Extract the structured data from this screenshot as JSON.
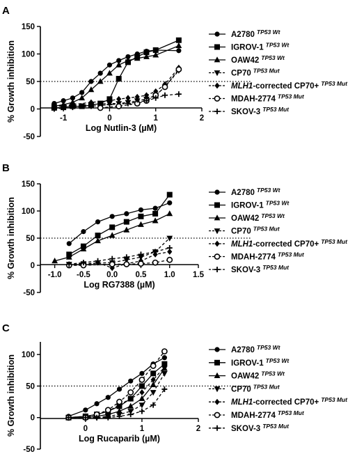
{
  "figure": {
    "markers": [
      "circle",
      "square",
      "triangle",
      "triangle-down",
      "diamond",
      "circle-open",
      "plus"
    ],
    "dashed": [
      false,
      false,
      false,
      true,
      true,
      true,
      true
    ],
    "legend_names": [
      {
        "name": "A2780",
        "sup": "TP53 Wt"
      },
      {
        "name": "IGROV-1",
        "sup": "TP53 Wt"
      },
      {
        "name": "OAW42",
        "sup": "TP53 Wt"
      },
      {
        "name": "CP70",
        "sup": "TP53 Mut"
      },
      {
        "name": "MLH1",
        "name_rest": "-corrected CP70+",
        "sup": "TP53 Mut",
        "italic_prefix": true
      },
      {
        "name": "MDAH-2774",
        "sup": "TP53 Mut"
      },
      {
        "name": "SKOV-3",
        "sup": "TP53 Mut"
      }
    ]
  },
  "chart_data": [
    {
      "type": "line",
      "panel_label": "A",
      "xlabel": "Log Nutlin-3 (µM)",
      "ylabel": "% Growth inhibition",
      "xlim": [
        -1.5,
        2
      ],
      "ylim": [
        -50,
        150
      ],
      "xticks": [
        "-1",
        "0",
        "1",
        "2"
      ],
      "xtick_values": [
        -1,
        0,
        1,
        2
      ],
      "yticks": [
        "-50",
        "0",
        "50",
        "100",
        "150"
      ],
      "ytick_values": [
        -50,
        0,
        50,
        100,
        150
      ],
      "reference_line_y": 50,
      "grid": false,
      "legend": "right",
      "series": [
        {
          "name": "A2780 TP53 Wt",
          "x": [
            -1.2,
            -1.0,
            -0.8,
            -0.6,
            -0.4,
            -0.2,
            0.0,
            0.2,
            0.4,
            0.6,
            0.8,
            1.0,
            1.5
          ],
          "y": [
            10,
            15,
            20,
            30,
            50,
            65,
            80,
            88,
            95,
            100,
            105,
            107,
            106
          ]
        },
        {
          "name": "IGROV-1 TP53 Wt",
          "x": [
            -1.2,
            -1.0,
            -0.8,
            -0.6,
            -0.4,
            -0.2,
            0.0,
            0.2,
            0.4,
            0.6,
            0.8,
            1.0,
            1.5
          ],
          "y": [
            2,
            3,
            5,
            5,
            7,
            10,
            18,
            55,
            85,
            95,
            103,
            107,
            125
          ]
        },
        {
          "name": "OAW42 TP53 Wt",
          "x": [
            -1.2,
            -1.0,
            -0.8,
            -0.6,
            -0.4,
            -0.2,
            0.0,
            0.2,
            0.4,
            0.6,
            0.8,
            1.0,
            1.5
          ],
          "y": [
            5,
            8,
            12,
            20,
            35,
            50,
            65,
            80,
            88,
            92,
            95,
            98,
            115
          ]
        },
        {
          "name": "CP70 TP53 Mut",
          "x": [
            -1.2,
            -0.8,
            -0.4,
            0.0,
            0.2,
            0.4,
            0.6,
            0.8,
            1.0,
            1.2,
            1.5
          ],
          "y": [
            5,
            6,
            8,
            10,
            10,
            12,
            15,
            18,
            25,
            40,
            70
          ]
        },
        {
          "name": "MLH1-corrected CP70+ TP53 Mut",
          "x": [
            -1.2,
            -0.8,
            -0.4,
            0.0,
            0.2,
            0.4,
            0.6,
            0.8,
            1.0,
            1.2,
            1.5
          ],
          "y": [
            5,
            8,
            12,
            15,
            18,
            20,
            22,
            25,
            32,
            45,
            75
          ]
        },
        {
          "name": "MDAH-2774 TP53 Mut",
          "x": [
            -0.2,
            0.2,
            0.6,
            0.8,
            1.0,
            1.2,
            1.5
          ],
          "y": [
            2,
            5,
            10,
            15,
            25,
            40,
            72
          ]
        },
        {
          "name": "SKOV-3 TP53 Mut",
          "x": [
            -1.2,
            -0.8,
            -0.4,
            0.0,
            0.4,
            0.8,
            1.0,
            1.2,
            1.5
          ],
          "y": [
            0,
            3,
            5,
            8,
            10,
            15,
            20,
            25,
            27
          ]
        }
      ]
    },
    {
      "type": "line",
      "panel_label": "B",
      "xlabel": "Log RG7388 (µM)",
      "ylabel": "% Growth inhibition",
      "xlim": [
        -1.25,
        1.5
      ],
      "ylim": [
        -50,
        150
      ],
      "xticks": [
        "-1.0",
        "-0.5",
        "0.0",
        "0.5",
        "1.0",
        "1.5"
      ],
      "xtick_values": [
        -1.0,
        -0.5,
        0.0,
        0.5,
        1.0,
        1.5
      ],
      "yticks": [
        "-50",
        "0",
        "50",
        "100",
        "150"
      ],
      "ytick_values": [
        -50,
        0,
        50,
        100,
        150
      ],
      "reference_line_y": 50,
      "grid": false,
      "legend": "right",
      "series": [
        {
          "name": "A2780 TP53 Wt",
          "x": [
            -0.75,
            -0.5,
            -0.25,
            0.0,
            0.25,
            0.5,
            0.75,
            1.0
          ],
          "y": [
            40,
            62,
            80,
            90,
            95,
            102,
            105,
            115
          ]
        },
        {
          "name": "IGROV-1 TP53 Wt",
          "x": [
            -0.75,
            -0.5,
            -0.25,
            0.0,
            0.25,
            0.5,
            0.75,
            1.0
          ],
          "y": [
            20,
            35,
            55,
            70,
            80,
            90,
            95,
            130
          ]
        },
        {
          "name": "OAW42 TP53 Wt",
          "x": [
            -1.0,
            -0.75,
            -0.5,
            -0.25,
            0.0,
            0.25,
            0.5,
            0.75,
            1.0
          ],
          "y": [
            8,
            15,
            30,
            45,
            55,
            65,
            75,
            82,
            95
          ]
        },
        {
          "name": "CP70 TP53 Mut",
          "x": [
            -0.75,
            -0.5,
            0.0,
            0.25,
            0.5,
            0.75,
            1.0
          ],
          "y": [
            2,
            3,
            5,
            10,
            15,
            25,
            50
          ]
        },
        {
          "name": "MLH1-corrected CP70+ TP53 Mut",
          "x": [
            -0.75,
            -0.5,
            -0.25,
            0.0,
            0.25,
            0.5,
            0.75,
            1.0
          ],
          "y": [
            0,
            0,
            5,
            -5,
            3,
            8,
            20,
            25
          ]
        },
        {
          "name": "MDAH-2774 TP53 Mut",
          "x": [
            -0.75,
            -0.5,
            0.0,
            0.25,
            0.5,
            0.75,
            1.0
          ],
          "y": [
            0,
            0,
            2,
            2,
            3,
            5,
            10
          ]
        },
        {
          "name": "SKOV-3 TP53 Mut",
          "x": [
            -0.75,
            -0.5,
            -0.25,
            0.0,
            0.25,
            0.5,
            0.75,
            1.0
          ],
          "y": [
            2,
            5,
            8,
            12,
            15,
            20,
            25,
            32
          ]
        }
      ]
    },
    {
      "type": "line",
      "panel_label": "C",
      "xlabel": "Log Rucaparib (µM)",
      "ylabel": "% Growth inhibition",
      "xlim": [
        -0.8,
        2
      ],
      "ylim": [
        -50,
        120
      ],
      "xticks": [
        "0",
        "1",
        "2"
      ],
      "xtick_values": [
        0,
        1,
        2
      ],
      "yticks": [
        "-50",
        "0",
        "50",
        "100"
      ],
      "ytick_values": [
        -50,
        0,
        50,
        100
      ],
      "reference_line_y": 50,
      "grid": false,
      "legend": "right",
      "series": [
        {
          "name": "A2780 TP53 Wt",
          "x": [
            -0.3,
            0.0,
            0.2,
            0.4,
            0.6,
            0.8,
            1.0,
            1.2,
            1.4
          ],
          "y": [
            2,
            12,
            22,
            32,
            45,
            58,
            70,
            85,
            95
          ]
        },
        {
          "name": "IGROV-1 TP53 Wt",
          "x": [
            -0.3,
            0.0,
            0.2,
            0.4,
            0.6,
            0.8,
            1.0,
            1.2,
            1.4
          ],
          "y": [
            0,
            2,
            5,
            10,
            18,
            30,
            50,
            70,
            85
          ]
        },
        {
          "name": "OAW42 TP53 Wt",
          "x": [
            -0.3,
            0.0,
            0.2,
            0.4,
            0.6,
            0.8,
            1.0,
            1.2,
            1.4
          ],
          "y": [
            0,
            0,
            2,
            5,
            10,
            18,
            30,
            52,
            78
          ]
        },
        {
          "name": "CP70 TP53 Mut",
          "x": [
            -0.3,
            0.0,
            0.2,
            0.4,
            0.6,
            0.8,
            1.0,
            1.2,
            1.4
          ],
          "y": [
            0,
            0,
            0,
            2,
            5,
            10,
            20,
            40,
            70
          ]
        },
        {
          "name": "MLH1-corrected CP70+ TP53 Mut",
          "x": [
            -0.3,
            0.0,
            0.2,
            0.4,
            0.6,
            0.8,
            1.0,
            1.2,
            1.4
          ],
          "y": [
            0,
            2,
            5,
            10,
            20,
            30,
            40,
            60,
            80
          ]
        },
        {
          "name": "MDAH-2774 TP53 Mut",
          "x": [
            -0.3,
            0.0,
            0.2,
            0.4,
            0.6,
            0.8,
            1.0,
            1.2,
            1.4
          ],
          "y": [
            0,
            0,
            5,
            12,
            25,
            40,
            60,
            82,
            105
          ]
        },
        {
          "name": "SKOV-3 TP53 Mut",
          "x": [
            -0.3,
            0.0,
            0.2,
            0.4,
            0.6,
            0.8,
            1.0,
            1.2,
            1.4
          ],
          "y": [
            0,
            0,
            0,
            0,
            2,
            5,
            10,
            20,
            45
          ]
        }
      ]
    }
  ]
}
